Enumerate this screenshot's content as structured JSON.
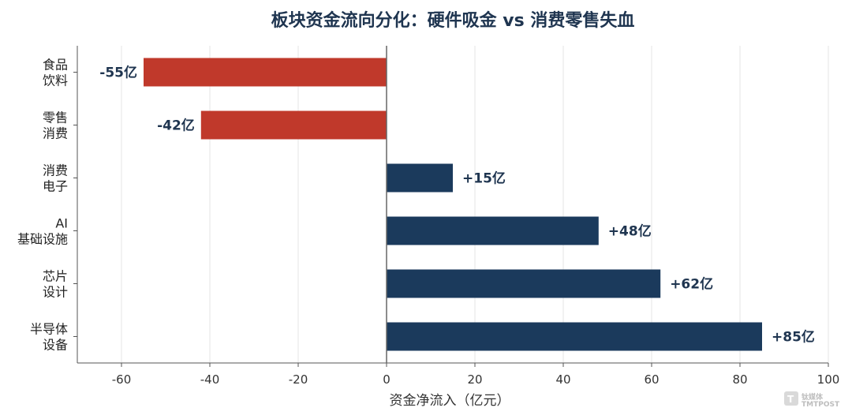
{
  "chart_data": {
    "type": "bar",
    "orientation": "horizontal",
    "title": "板块资金流向分化：硬件吸金 vs 消费零售失血",
    "xlabel": "资金净流入（亿元）",
    "xlim": [
      -70,
      100
    ],
    "xticks": [
      -60,
      -40,
      -20,
      0,
      20,
      40,
      60,
      80,
      100
    ],
    "grid": "vertical",
    "categories": [
      [
        "食品",
        "饮料"
      ],
      [
        "零售",
        "消费"
      ],
      [
        "消费",
        "电子"
      ],
      [
        "AI",
        "基础设施"
      ],
      [
        "芯片",
        "设计"
      ],
      [
        "半导体",
        "设备"
      ]
    ],
    "values": [
      -55,
      -42,
      15,
      48,
      62,
      85
    ],
    "data_labels": [
      "-55亿",
      "-42亿",
      "+15亿",
      "+48亿",
      "+62亿",
      "+85亿"
    ],
    "colors": {
      "negative": "#c0392b",
      "positive": "#1b3a5c"
    }
  },
  "watermark": {
    "text": "钛媒体",
    "sub": "TMTPOST"
  }
}
